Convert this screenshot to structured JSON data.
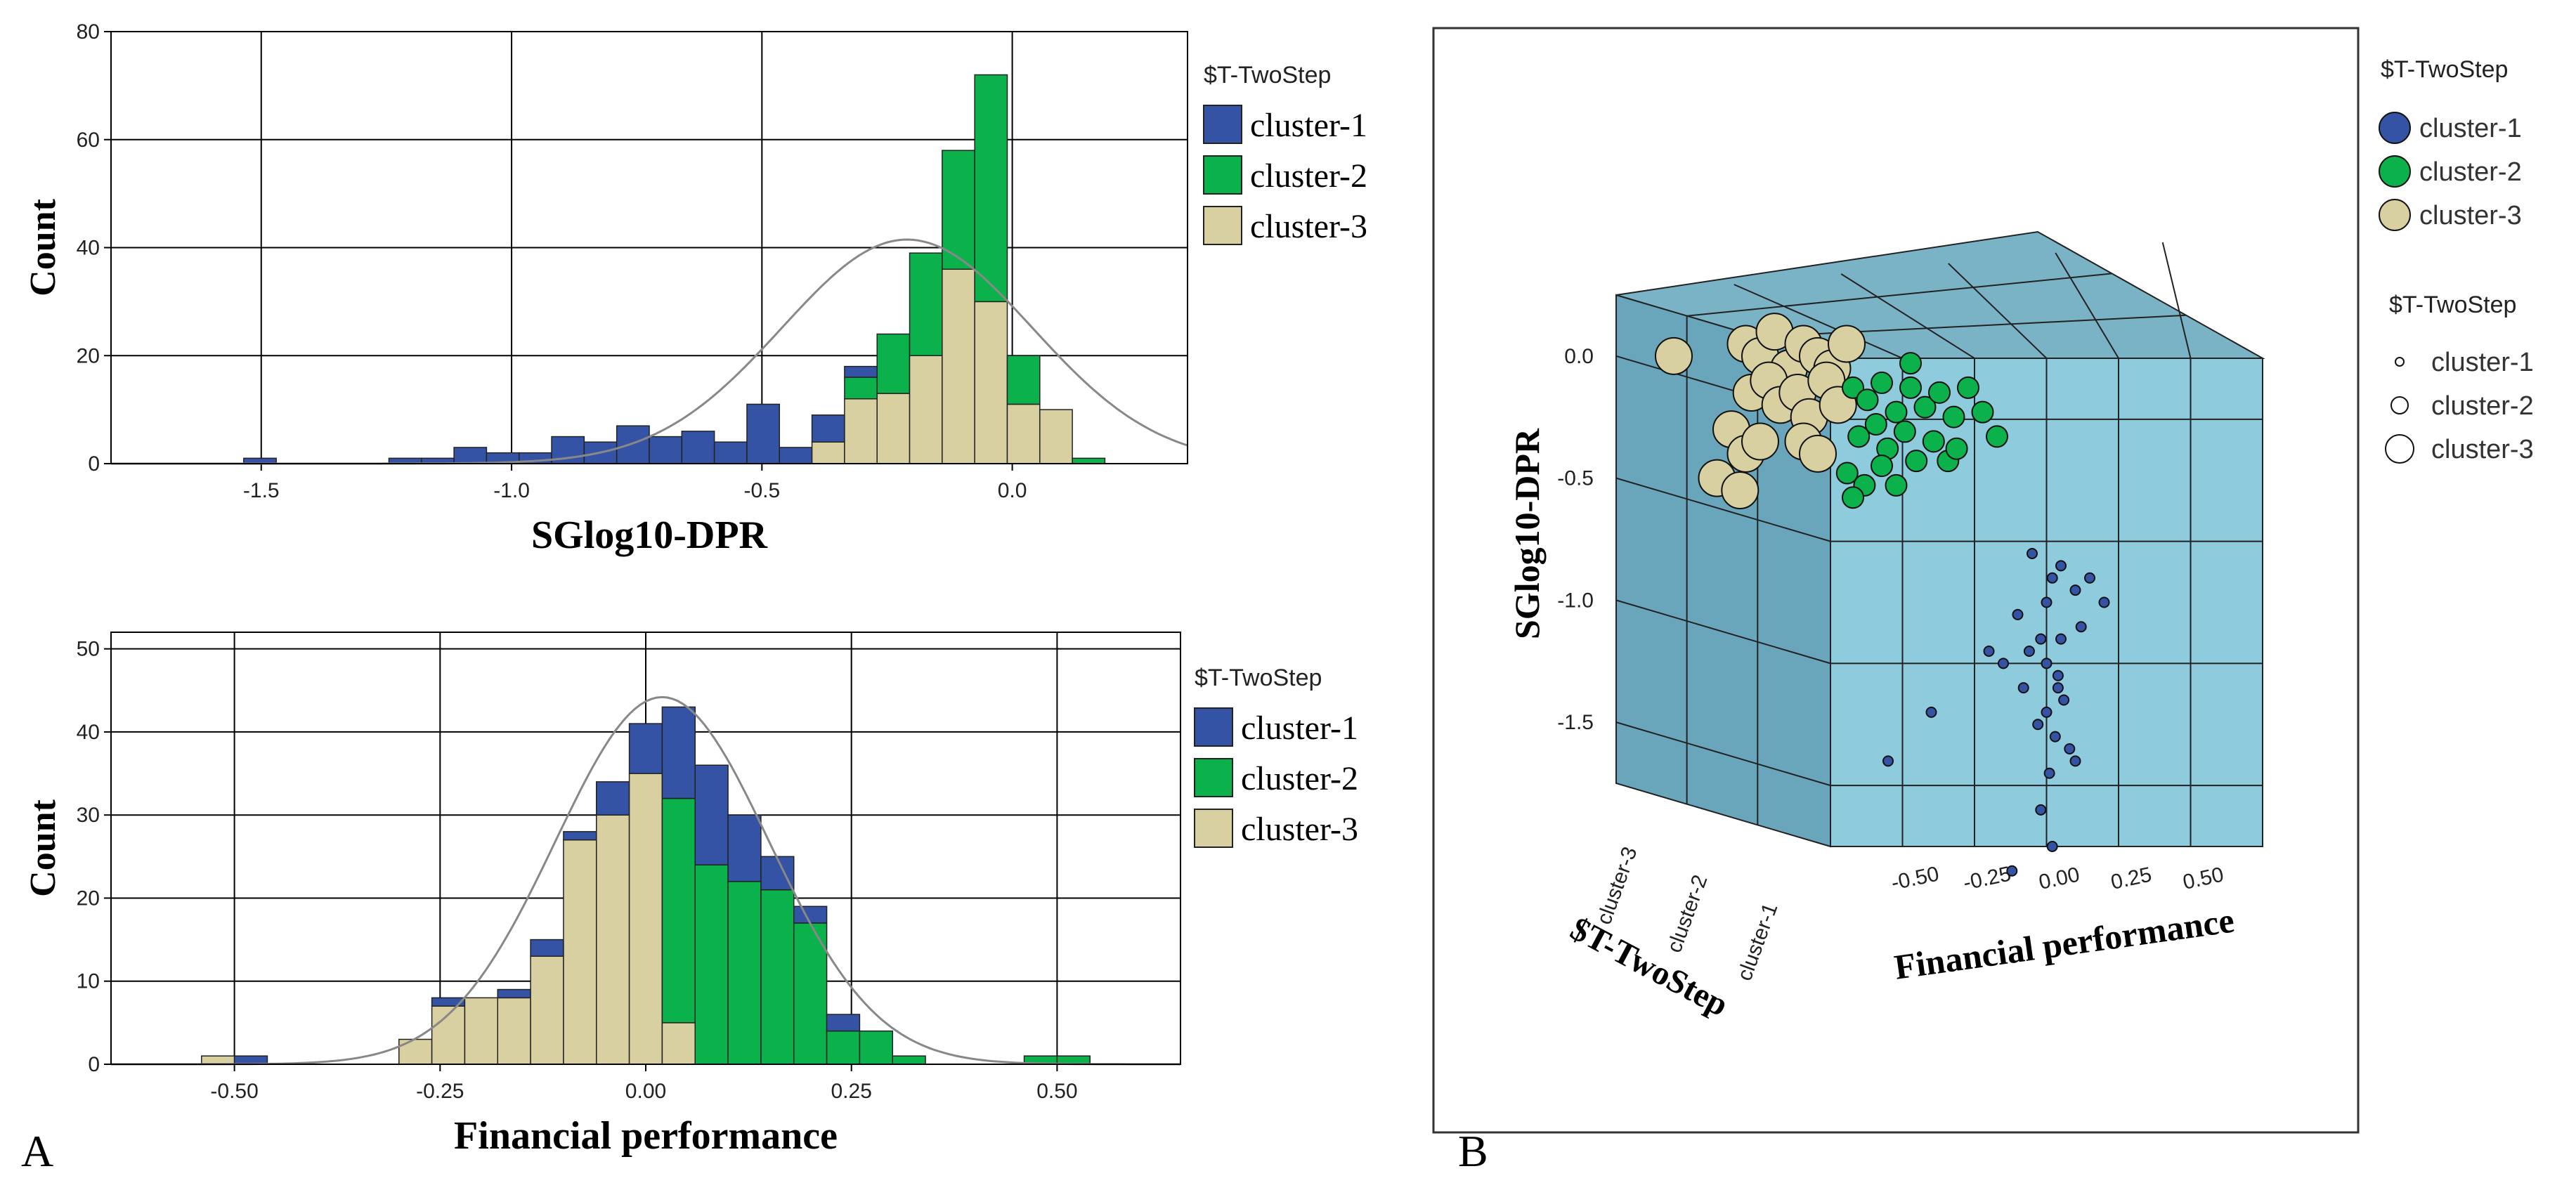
{
  "panels": {
    "a_label": "A",
    "b_label": "B"
  },
  "colors": {
    "cluster_1": "#3553a5",
    "cluster_2": "#0bb14a",
    "cluster_3": "#d8d0a0",
    "grid": "#000000",
    "curve": "#888888",
    "cube_front": "#8ecbdc",
    "cube_side": "#6aa6bb",
    "cube_top": "#7bb3c6"
  },
  "chart_data": [
    {
      "type": "bar",
      "stacked": true,
      "xlabel": "SGlog10-DPR",
      "ylabel": "Count",
      "xlim": [
        -1.8,
        0.35
      ],
      "ylim": [
        0,
        80
      ],
      "xticks": [
        "-1.5",
        "-1.0",
        "-0.5",
        "0.0"
      ],
      "xtick_values": [
        -1.5,
        -1.0,
        -0.5,
        0.0
      ],
      "yticks": [
        "0",
        "20",
        "40",
        "60",
        "80"
      ],
      "ytick_values": [
        0,
        20,
        40,
        60,
        80
      ],
      "bin_width": 0.065,
      "legend_title": "$T-TwoStep",
      "legend_position": "right",
      "series_names": [
        "cluster-1",
        "cluster-2",
        "cluster-3"
      ],
      "bins": [
        {
          "x0": -1.535,
          "c1": 1,
          "c2": 0,
          "c3": 0
        },
        {
          "x0": -1.245,
          "c1": 1,
          "c2": 0,
          "c3": 0
        },
        {
          "x0": -1.18,
          "c1": 1,
          "c2": 0,
          "c3": 0
        },
        {
          "x0": -1.115,
          "c1": 3,
          "c2": 0,
          "c3": 0
        },
        {
          "x0": -1.05,
          "c1": 2,
          "c2": 0,
          "c3": 0
        },
        {
          "x0": -0.985,
          "c1": 2,
          "c2": 0,
          "c3": 0
        },
        {
          "x0": -0.92,
          "c1": 5,
          "c2": 0,
          "c3": 0
        },
        {
          "x0": -0.855,
          "c1": 4,
          "c2": 0,
          "c3": 0
        },
        {
          "x0": -0.79,
          "c1": 7,
          "c2": 0,
          "c3": 0
        },
        {
          "x0": -0.725,
          "c1": 5,
          "c2": 0,
          "c3": 0
        },
        {
          "x0": -0.66,
          "c1": 6,
          "c2": 0,
          "c3": 0
        },
        {
          "x0": -0.595,
          "c1": 4,
          "c2": 0,
          "c3": 0
        },
        {
          "x0": -0.53,
          "c1": 11,
          "c2": 0,
          "c3": 0
        },
        {
          "x0": -0.465,
          "c1": 3,
          "c2": 0,
          "c3": 0
        },
        {
          "x0": -0.4,
          "c1": 5,
          "c2": 0,
          "c3": 4
        },
        {
          "x0": -0.335,
          "c1": 2,
          "c2": 4,
          "c3": 12
        },
        {
          "x0": -0.27,
          "c1": 0,
          "c2": 11,
          "c3": 13
        },
        {
          "x0": -0.205,
          "c1": 0,
          "c2": 19,
          "c3": 20
        },
        {
          "x0": -0.14,
          "c1": 0,
          "c2": 22,
          "c3": 36
        },
        {
          "x0": -0.075,
          "c1": 0,
          "c2": 42,
          "c3": 30
        },
        {
          "x0": -0.01,
          "c1": 0,
          "c2": 9,
          "c3": 11
        },
        {
          "x0": 0.055,
          "c1": 0,
          "c2": 0,
          "c3": 10
        },
        {
          "x0": 0.12,
          "c1": 0,
          "c2": 1,
          "c3": 0
        }
      ],
      "normal_curve": {
        "mean": -0.21,
        "sd": 0.25,
        "n": 400
      }
    },
    {
      "type": "bar",
      "stacked": true,
      "xlabel": "Financial performance",
      "ylabel": "Count",
      "xlim": [
        -0.65,
        0.65
      ],
      "ylim": [
        0,
        52
      ],
      "xticks": [
        "-0.50",
        "-0.25",
        "0.00",
        "0.25",
        "0.50"
      ],
      "xtick_values": [
        -0.5,
        -0.25,
        0.0,
        0.25,
        0.5
      ],
      "yticks": [
        "0",
        "10",
        "20",
        "30",
        "40",
        "50"
      ],
      "ytick_values": [
        0,
        10,
        20,
        30,
        40,
        50
      ],
      "bin_width": 0.04,
      "legend_title": "$T-TwoStep",
      "legend_position": "right",
      "series_names": [
        "cluster-1",
        "cluster-2",
        "cluster-3"
      ],
      "bins": [
        {
          "x0": -0.54,
          "c1": 0,
          "c2": 0,
          "c3": 1
        },
        {
          "x0": -0.5,
          "c1": 1,
          "c2": 0,
          "c3": 0
        },
        {
          "x0": -0.3,
          "c1": 0,
          "c2": 0,
          "c3": 3
        },
        {
          "x0": -0.26,
          "c1": 1,
          "c2": 0,
          "c3": 7
        },
        {
          "x0": -0.22,
          "c1": 0,
          "c2": 0,
          "c3": 8
        },
        {
          "x0": -0.18,
          "c1": 1,
          "c2": 0,
          "c3": 8
        },
        {
          "x0": -0.14,
          "c1": 2,
          "c2": 0,
          "c3": 13
        },
        {
          "x0": -0.1,
          "c1": 1,
          "c2": 0,
          "c3": 27
        },
        {
          "x0": -0.06,
          "c1": 4,
          "c2": 0,
          "c3": 30
        },
        {
          "x0": -0.02,
          "c1": 6,
          "c2": 0,
          "c3": 35
        },
        {
          "x0": 0.02,
          "c1": 11,
          "c2": 0,
          "c3": 0
        },
        {
          "x0": 0.02,
          "c1": 0,
          "c2": 0,
          "c3": 0
        },
        {
          "x0": 0.06,
          "c1": 12,
          "c2": 24,
          "c3": 0
        },
        {
          "x0": 0.1,
          "c1": 8,
          "c2": 22,
          "c3": 0
        },
        {
          "x0": 0.14,
          "c1": 4,
          "c2": 21,
          "c3": 0
        },
        {
          "x0": 0.18,
          "c1": 2,
          "c2": 17,
          "c3": 0
        },
        {
          "x0": 0.22,
          "c1": 2,
          "c2": 4,
          "c3": 0
        },
        {
          "x0": 0.26,
          "c1": 0,
          "c2": 4,
          "c3": 0
        },
        {
          "x0": 0.3,
          "c1": 0,
          "c2": 1,
          "c3": 0
        },
        {
          "x0": 0.46,
          "c1": 0,
          "c2": 1,
          "c3": 0
        },
        {
          "x0": 0.5,
          "c1": 0,
          "c2": 1,
          "c3": 0
        }
      ],
      "extra_stack": [
        {
          "x0": 0.02,
          "c1": 0,
          "c2": 27,
          "c3": 5,
          "top_c1": 11
        }
      ],
      "normal_curve": {
        "mean": 0.02,
        "sd": 0.13,
        "n": 360
      }
    },
    {
      "type": "scatter",
      "projection": "3d",
      "xlabel": "Financial performance",
      "ylabel": "SGlog10-DPR",
      "zlabel": "$T-TwoStep",
      "xticks": [
        "-0.50",
        "-0.25",
        "0.00",
        "0.25",
        "0.50"
      ],
      "yticks": [
        "0.0",
        "-0.5",
        "-1.0",
        "-1.5"
      ],
      "zticks": [
        "cluster-3",
        "cluster-2",
        "cluster-1"
      ],
      "color_legend_title": "$T-TwoStep",
      "size_legend_title": "$T-TwoStep",
      "legend_position": "right",
      "series": [
        {
          "name": "cluster-1",
          "points": [
            [
              -0.05,
              -0.55
            ],
            [
              0.02,
              -0.65
            ],
            [
              0.05,
              -0.6
            ],
            [
              0.1,
              -0.7
            ],
            [
              0.15,
              -0.65
            ],
            [
              -0.1,
              -0.8
            ],
            [
              -0.02,
              -0.9
            ],
            [
              0.0,
              -1.0
            ],
            [
              0.04,
              -1.05
            ],
            [
              -0.08,
              -1.1
            ],
            [
              0.06,
              -1.15
            ],
            [
              0.0,
              -1.2
            ],
            [
              0.03,
              -1.3
            ],
            [
              -0.03,
              -1.25
            ],
            [
              0.08,
              -1.35
            ],
            [
              -0.15,
              -1.0
            ],
            [
              0.12,
              -0.85
            ],
            [
              0.2,
              -0.75
            ],
            [
              -0.2,
              -0.95
            ],
            [
              0.01,
              -1.45
            ],
            [
              -0.4,
              -1.2
            ],
            [
              -0.55,
              -1.4
            ],
            [
              0.0,
              -0.75
            ],
            [
              -0.06,
              -0.95
            ],
            [
              0.05,
              -0.9
            ],
            [
              0.1,
              -1.4
            ],
            [
              -0.02,
              -1.6
            ],
            [
              0.02,
              -1.75
            ],
            [
              -0.12,
              -1.85
            ],
            [
              0.04,
              -1.1
            ]
          ]
        },
        {
          "name": "cluster-2",
          "points": [
            [
              -0.3,
              0.0
            ],
            [
              -0.25,
              -0.05
            ],
            [
              -0.2,
              0.02
            ],
            [
              -0.15,
              -0.1
            ],
            [
              -0.1,
              0.0
            ],
            [
              -0.05,
              -0.08
            ],
            [
              0.0,
              -0.02
            ],
            [
              0.05,
              -0.12
            ],
            [
              -0.28,
              -0.2
            ],
            [
              -0.22,
              -0.15
            ],
            [
              -0.18,
              -0.25
            ],
            [
              -0.12,
              -0.18
            ],
            [
              -0.08,
              -0.3
            ],
            [
              -0.02,
              -0.22
            ],
            [
              0.03,
              -0.3
            ],
            [
              -0.32,
              -0.35
            ],
            [
              -0.26,
              -0.4
            ],
            [
              -0.2,
              -0.32
            ],
            [
              0.1,
              0.0
            ],
            [
              0.15,
              -0.1
            ],
            [
              0.2,
              -0.2
            ],
            [
              -0.1,
              0.1
            ],
            [
              -0.3,
              -0.45
            ],
            [
              -0.15,
              -0.4
            ],
            [
              0.06,
              -0.25
            ]
          ]
        },
        {
          "name": "cluster-3",
          "points": [
            [
              -0.3,
              0.05
            ],
            [
              -0.25,
              0.0
            ],
            [
              -0.2,
              0.1
            ],
            [
              -0.15,
              -0.05
            ],
            [
              -0.1,
              0.05
            ],
            [
              -0.05,
              0.0
            ],
            [
              0.0,
              -0.05
            ],
            [
              -0.28,
              -0.15
            ],
            [
              -0.22,
              -0.1
            ],
            [
              -0.18,
              -0.2
            ],
            [
              -0.12,
              -0.15
            ],
            [
              -0.08,
              -0.25
            ],
            [
              -0.02,
              -0.1
            ],
            [
              0.05,
              0.05
            ],
            [
              -0.35,
              -0.3
            ],
            [
              -0.3,
              -0.4
            ],
            [
              -0.25,
              -0.35
            ],
            [
              -0.55,
              0.0
            ],
            [
              -0.4,
              -0.5
            ],
            [
              -0.32,
              -0.55
            ],
            [
              -0.1,
              -0.35
            ],
            [
              0.02,
              -0.2
            ],
            [
              -0.05,
              -0.4
            ]
          ]
        }
      ]
    }
  ],
  "legend_b": {
    "color_title": "$T-TwoStep",
    "size_title": "$T-TwoStep",
    "items": [
      "cluster-1",
      "cluster-2",
      "cluster-3"
    ]
  }
}
